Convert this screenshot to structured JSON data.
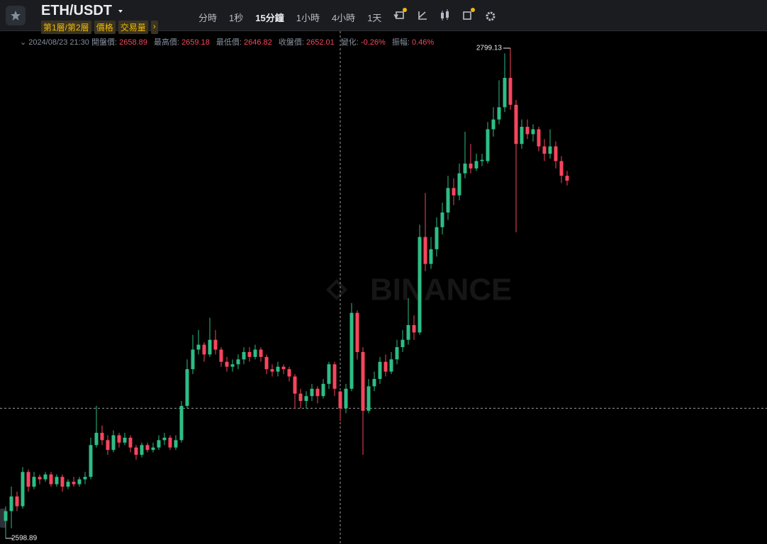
{
  "header": {
    "symbol": "ETH/USDT",
    "sub": [
      "第1層/第2層",
      "價格",
      "交易量"
    ]
  },
  "toolbar": {
    "intervals": [
      "分時",
      "1秒",
      "15分鐘",
      "1小時",
      "4小時",
      "1天"
    ],
    "active": 2
  },
  "info": {
    "time": "2024/08/23 21:30",
    "labels": [
      "開盤價:",
      "最高價:",
      "最低價:",
      "收盤價:",
      "變化:",
      "振幅:"
    ],
    "change": {
      "value": -0.26,
      "label": "-0.26%"
    },
    "amplitude": {
      "value": 0.46,
      "label": "0.46%"
    }
  },
  "watermark": "BINANCE",
  "chart_data": {
    "type": "candlestick",
    "up_color": "#2ebd85",
    "down_color": "#f6465d",
    "crosshair": 59,
    "open": [
      2606,
      2610,
      2616,
      2612,
      2626,
      2620,
      2624,
      2623,
      2625,
      2621,
      2624,
      2620,
      2622,
      2621,
      2623,
      2624,
      2637,
      2642,
      2639,
      2635,
      2641,
      2638,
      2640,
      2636,
      2633,
      2637,
      2635,
      2636,
      2639,
      2640,
      2636,
      2639,
      2653,
      2668,
      2676,
      2678,
      2674,
      2680,
      2676,
      2671,
      2669,
      2670,
      2672,
      2675,
      2673,
      2676,
      2673,
      2668,
      2667,
      2669,
      2668,
      2665,
      2658,
      2655,
      2657,
      2660,
      2657,
      2662,
      2670,
      2658.89,
      2652,
      2660,
      2691,
      2675,
      2651,
      2661,
      2664,
      2671,
      2667,
      2672,
      2677,
      2680,
      2686,
      2683,
      2722,
      2711,
      2717,
      2726,
      2732,
      2742,
      2739,
      2748,
      2752,
      2750,
      2753,
      2753,
      2766,
      2770,
      2775,
      2787,
      2776,
      2760,
      2767,
      2764,
      2766,
      2759,
      2756,
      2759,
      2753,
      2747
    ],
    "high": [
      2612,
      2620,
      2618,
      2628,
      2627,
      2626,
      2625,
      2626,
      2626,
      2625,
      2625,
      2623,
      2624,
      2624,
      2626,
      2640,
      2653,
      2645,
      2641,
      2643,
      2642,
      2642,
      2641,
      2637,
      2638,
      2638,
      2638,
      2641,
      2642,
      2641,
      2641,
      2655,
      2672,
      2682,
      2684,
      2679,
      2689,
      2684,
      2677,
      2673,
      2672,
      2674,
      2677,
      2677,
      2678,
      2677,
      2674,
      2670,
      2671,
      2670,
      2669,
      2666,
      2660,
      2659,
      2662,
      2661,
      2664,
      2671,
      2671,
      2659.18,
      2662,
      2695,
      2692,
      2677,
      2664,
      2667,
      2673,
      2674,
      2675,
      2680,
      2684,
      2697,
      2690,
      2727,
      2740,
      2722,
      2730,
      2736,
      2747,
      2746,
      2752,
      2765,
      2760,
      2756,
      2756,
      2769,
      2775,
      2786,
      2797,
      2799.13,
      2778,
      2770,
      2770,
      2768,
      2767,
      2762,
      2766,
      2761,
      2755,
      2749
    ],
    "low": [
      2598.89,
      2603,
      2610,
      2611,
      2618,
      2619,
      2621,
      2622,
      2620,
      2620,
      2618,
      2619,
      2620,
      2620,
      2621,
      2623,
      2636,
      2637,
      2633,
      2634,
      2636,
      2637,
      2634,
      2631,
      2632,
      2634,
      2634,
      2635,
      2637,
      2635,
      2635,
      2638,
      2652,
      2666,
      2674,
      2671,
      2673,
      2674,
      2669,
      2667,
      2667,
      2668,
      2670,
      2671,
      2672,
      2671,
      2666,
      2665,
      2665,
      2666,
      2663,
      2652,
      2652,
      2652,
      2655,
      2654,
      2656,
      2660,
      2657,
      2646.82,
      2650,
      2659,
      2672,
      2633,
      2650,
      2659,
      2662,
      2665,
      2666,
      2670,
      2675,
      2678,
      2680,
      2682,
      2708,
      2709,
      2714,
      2723,
      2729,
      2735,
      2737,
      2746,
      2748,
      2749,
      2751,
      2752,
      2763,
      2768,
      2773,
      2774,
      2723.9,
      2758,
      2762,
      2761,
      2757,
      2753,
      2754,
      2750,
      2744,
      2743
    ],
    "close": [
      2610,
      2616,
      2612,
      2626,
      2620,
      2624,
      2623,
      2625,
      2621,
      2624,
      2620,
      2622,
      2621,
      2623,
      2624,
      2637,
      2642,
      2639,
      2635,
      2641,
      2638,
      2640,
      2636,
      2633,
      2637,
      2635,
      2636,
      2639,
      2640,
      2636,
      2639,
      2653,
      2668,
      2676,
      2678,
      2674,
      2680,
      2676,
      2671,
      2669,
      2670,
      2672,
      2675,
      2673,
      2676,
      2673,
      2668,
      2667,
      2669,
      2668,
      2665,
      2658,
      2655,
      2657,
      2660,
      2657,
      2662,
      2670,
      2660,
      2652.01,
      2660,
      2691,
      2675,
      2651,
      2661,
      2664,
      2671,
      2667,
      2672,
      2677,
      2680,
      2686,
      2683,
      2722,
      2711,
      2717,
      2726,
      2732,
      2742,
      2739,
      2748,
      2752,
      2750,
      2753,
      2753.5,
      2766,
      2770,
      2775,
      2787,
      2776,
      2760,
      2767,
      2764,
      2766,
      2759,
      2756,
      2759,
      2753,
      2747,
      2745
    ]
  }
}
